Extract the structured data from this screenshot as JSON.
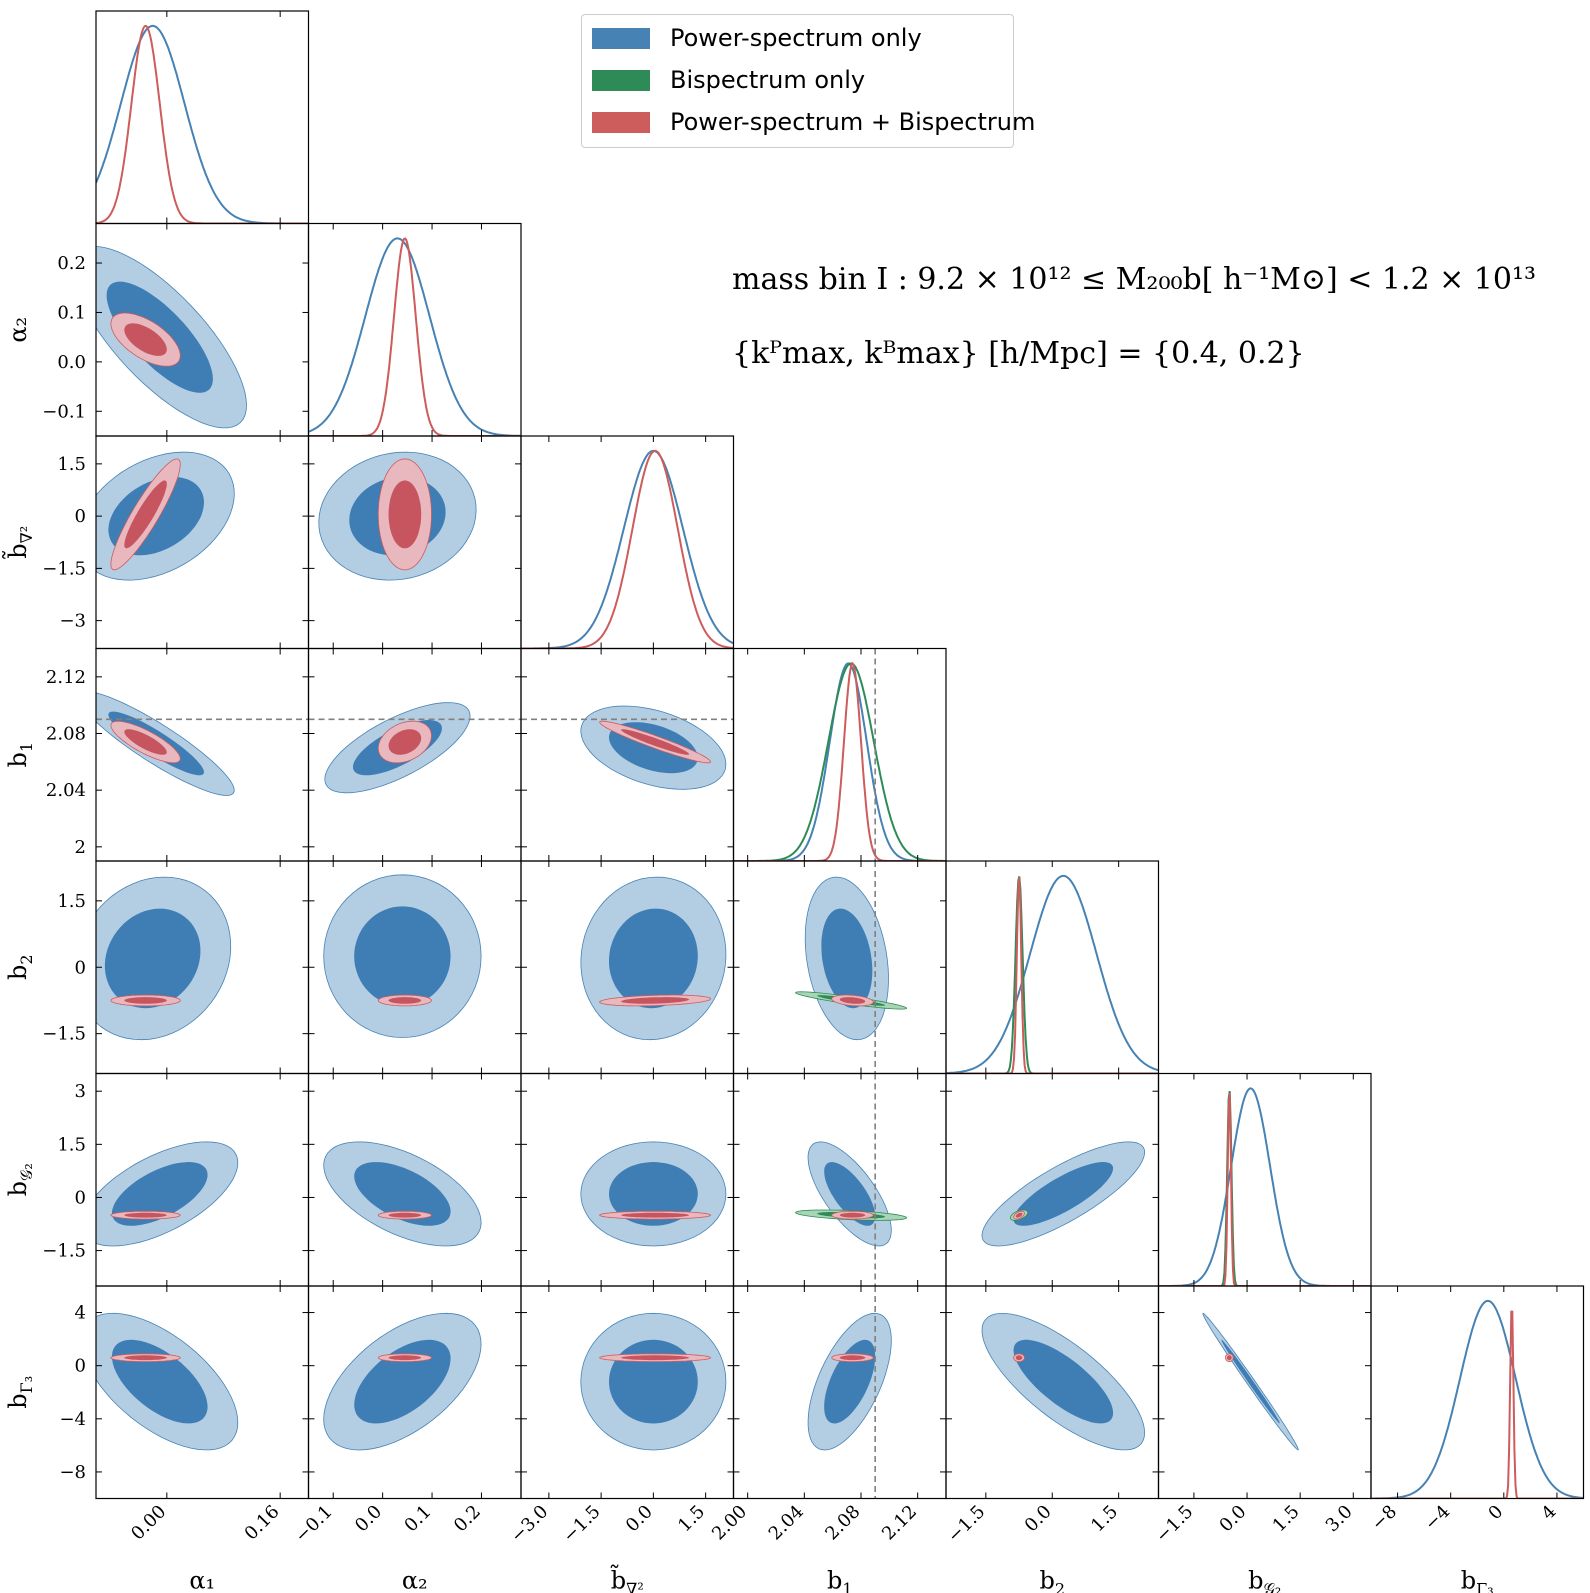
{
  "chart_data": {
    "type": "corner",
    "title": "",
    "parameters": [
      {
        "id": "a1",
        "label": "α₁",
        "sub": "",
        "range": [
          -0.1,
          0.2
        ],
        "ticks": [
          0.0,
          0.16
        ],
        "tick_labels": [
          "0.00",
          "0.16"
        ]
      },
      {
        "id": "a2",
        "label": "α₂",
        "sub": "",
        "range": [
          -0.15,
          0.28
        ],
        "ticks": [
          -0.1,
          0.0,
          0.1,
          0.2
        ],
        "tick_labels": [
          "−0.1",
          "0.0",
          "0.1",
          "0.2"
        ]
      },
      {
        "id": "bn",
        "label": "b̃",
        "sub": "∇²",
        "range": [
          -3.8,
          2.3
        ],
        "ticks": [
          -3.0,
          -1.5,
          0.0,
          1.5
        ],
        "tick_labels": [
          "−3",
          "−1.5",
          "0",
          "1.5"
        ],
        "x_tick_labels": [
          "−3.0",
          "−1.5",
          "0.0",
          "1.5"
        ]
      },
      {
        "id": "b1",
        "label": "b",
        "sub": "1",
        "range": [
          1.99,
          2.14
        ],
        "ticks": [
          2.0,
          2.04,
          2.08,
          2.12
        ],
        "tick_labels": [
          "2",
          "2.04",
          "2.08",
          "2.12"
        ],
        "x_tick_labels": [
          "2.00",
          "2.04",
          "2.08",
          "2.12"
        ]
      },
      {
        "id": "b2",
        "label": "b",
        "sub": "2",
        "range": [
          -2.4,
          2.4
        ],
        "ticks": [
          -1.5,
          0.0,
          1.5
        ],
        "tick_labels": [
          "−1.5",
          "0",
          "1.5"
        ],
        "x_tick_labels": [
          "−1.5",
          "0.0",
          "1.5"
        ]
      },
      {
        "id": "bg",
        "label": "b",
        "sub": "𝒢₂",
        "range": [
          -2.5,
          3.5
        ],
        "ticks": [
          -1.5,
          0.0,
          1.5,
          3.0
        ],
        "tick_labels": [
          "−1.5",
          "0",
          "1.5",
          "3"
        ],
        "x_tick_labels": [
          "−1.5",
          "0.0",
          "1.5",
          "3.0"
        ]
      },
      {
        "id": "bG",
        "label": "b",
        "sub": "Γ₃",
        "range": [
          -10,
          6
        ],
        "ticks": [
          -8,
          -4,
          0,
          4
        ],
        "tick_labels": [
          "−8",
          "−4",
          "0",
          "4"
        ],
        "x_tick_labels": [
          "−8",
          "−4",
          "0",
          "4"
        ]
      }
    ],
    "series": [
      {
        "name": "Power-spectrum only",
        "color": "#4682b4",
        "color_inner": "#3f7db5",
        "color_outer": "#b3cde3"
      },
      {
        "name": "Bispectrum only",
        "color": "#2e8b57",
        "color_inner": "#2e8b57",
        "color_outer": "#a8d5b5"
      },
      {
        "name": "Power-spectrum + Bispectrum",
        "color": "#cd5c5c",
        "color_inner": "#c65560",
        "color_outer": "#e8b8be"
      }
    ],
    "marginals": {
      "P": {
        "a1": [
          -0.02,
          0.045
        ],
        "a2": [
          0.03,
          0.065
        ],
        "bn": [
          0.0,
          0.85
        ],
        "b1": [
          2.071,
          0.013
        ],
        "b2": [
          0.25,
          0.75
        ],
        "bg": [
          0.1,
          0.55
        ],
        "bG": [
          -1.2,
          2.1
        ]
      },
      "B": {
        "b1": [
          2.073,
          0.016
        ],
        "b2": [
          -0.75,
          0.08
        ],
        "bg": [
          -0.5,
          0.06
        ]
      },
      "PB": {
        "a1": [
          -0.03,
          0.02
        ],
        "a2": [
          0.045,
          0.022
        ],
        "bn": [
          0.05,
          0.65
        ],
        "b1": [
          2.074,
          0.006
        ],
        "b2": [
          -0.75,
          0.05
        ],
        "bg": [
          -0.5,
          0.045
        ],
        "bG": [
          0.6,
          0.12
        ]
      }
    },
    "truth": {
      "b1": 2.09
    },
    "legend_position": "upper-center",
    "annotations": [
      "mass bin I : 9.2 × 10¹² ≤ M₂₀₀b[ h⁻¹M⊙] < 1.2 × 10¹³",
      "{kᴾmax, kᴮmax} [h/Mpc] = {0.4, 0.2}"
    ]
  }
}
